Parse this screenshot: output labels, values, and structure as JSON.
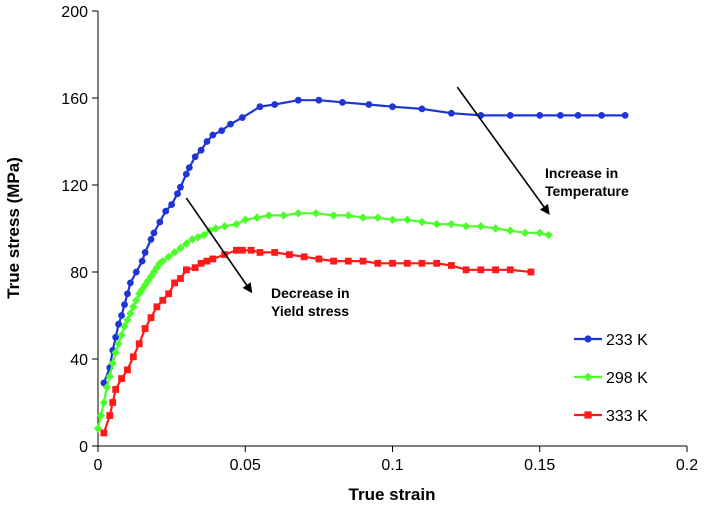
{
  "chart_data": {
    "type": "line",
    "title": "",
    "xlabel": "True strain",
    "ylabel": "True stress (MPa)",
    "xlim": [
      0,
      0.2
    ],
    "ylim": [
      0,
      200
    ],
    "x_ticks": [
      "0",
      "0.05",
      "0.1",
      "0.15",
      "0.2"
    ],
    "y_ticks": [
      "0",
      "40",
      "80",
      "120",
      "160",
      "200"
    ],
    "x_tick_values": [
      0,
      0.05,
      0.1,
      0.15,
      0.2
    ],
    "y_tick_values": [
      0,
      40,
      80,
      120,
      160,
      200
    ],
    "grid": false,
    "legend_position": "bottom-right",
    "series": [
      {
        "name": "233 K",
        "color": "#1f35d6",
        "marker": "circle",
        "x": [
          0.002,
          0.004,
          0.005,
          0.006,
          0.007,
          0.008,
          0.009,
          0.01,
          0.011,
          0.013,
          0.015,
          0.016,
          0.018,
          0.019,
          0.021,
          0.023,
          0.025,
          0.027,
          0.028,
          0.03,
          0.031,
          0.033,
          0.035,
          0.037,
          0.039,
          0.042,
          0.045,
          0.049,
          0.055,
          0.06,
          0.068,
          0.075,
          0.083,
          0.092,
          0.1,
          0.11,
          0.12,
          0.13,
          0.14,
          0.15,
          0.157,
          0.163,
          0.171,
          0.179
        ],
        "y": [
          29,
          36,
          44,
          50,
          56,
          60,
          65,
          70,
          75,
          80,
          85,
          89,
          95,
          98,
          103,
          108,
          111,
          116,
          119,
          125,
          128,
          133,
          136,
          140,
          143,
          145,
          148,
          151,
          156,
          157,
          159,
          159,
          158,
          157,
          156,
          155,
          153,
          152,
          152,
          152,
          152,
          152,
          152,
          152
        ]
      },
      {
        "name": "298 K",
        "color": "#4cff2a",
        "marker": "diamond",
        "x": [
          0,
          0.001,
          0.002,
          0.003,
          0.004,
          0.005,
          0.006,
          0.007,
          0.008,
          0.009,
          0.01,
          0.011,
          0.012,
          0.013,
          0.014,
          0.015,
          0.016,
          0.017,
          0.018,
          0.019,
          0.02,
          0.021,
          0.022,
          0.024,
          0.026,
          0.028,
          0.03,
          0.032,
          0.034,
          0.036,
          0.038,
          0.04,
          0.043,
          0.047,
          0.05,
          0.054,
          0.058,
          0.063,
          0.068,
          0.074,
          0.08,
          0.085,
          0.09,
          0.095,
          0.1,
          0.105,
          0.11,
          0.115,
          0.12,
          0.125,
          0.13,
          0.135,
          0.14,
          0.145,
          0.15,
          0.153
        ],
        "y": [
          8,
          14,
          20,
          27,
          32,
          38,
          43,
          47,
          51,
          55,
          58,
          61,
          64,
          67,
          70,
          72,
          74,
          76,
          78,
          80,
          82,
          84,
          85,
          87,
          89,
          91,
          93,
          95,
          96,
          97,
          99,
          100,
          101,
          102,
          104,
          105,
          106,
          106,
          107,
          107,
          106,
          106,
          105,
          105,
          104,
          104,
          103,
          102,
          102,
          101,
          101,
          100,
          99,
          98,
          98,
          97
        ]
      },
      {
        "name": "333 K",
        "color": "#ff1a1a",
        "marker": "square",
        "x": [
          0.002,
          0.004,
          0.005,
          0.006,
          0.008,
          0.01,
          0.012,
          0.014,
          0.016,
          0.018,
          0.02,
          0.022,
          0.024,
          0.026,
          0.028,
          0.03,
          0.033,
          0.035,
          0.037,
          0.039,
          0.043,
          0.047,
          0.049,
          0.052,
          0.055,
          0.06,
          0.065,
          0.07,
          0.075,
          0.08,
          0.085,
          0.09,
          0.095,
          0.1,
          0.105,
          0.11,
          0.115,
          0.12,
          0.125,
          0.13,
          0.135,
          0.14,
          0.147
        ],
        "y": [
          6,
          14,
          20,
          26,
          31,
          35,
          41,
          47,
          54,
          59,
          64,
          67,
          70,
          75,
          77,
          81,
          82,
          84,
          85,
          86,
          88,
          90,
          90,
          90,
          89,
          89,
          88,
          87,
          86,
          85,
          85,
          85,
          84,
          84,
          84,
          84,
          84,
          83,
          81,
          81,
          81,
          81,
          80
        ]
      }
    ],
    "annotations": [
      {
        "lines": [
          "Increase in",
          "Temperature"
        ],
        "arrow_from": [
          0.122,
          165
        ],
        "arrow_to": [
          0.153,
          107
        ]
      },
      {
        "lines": [
          "Decrease in",
          "Yield stress"
        ],
        "arrow_from": [
          0.03,
          114
        ],
        "arrow_to": [
          0.052,
          71
        ]
      }
    ]
  }
}
